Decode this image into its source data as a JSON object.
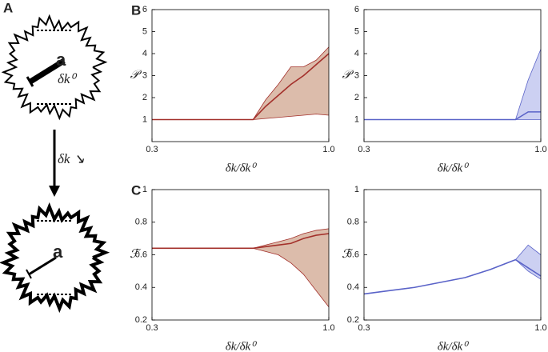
{
  "diagram": {
    "label": "A",
    "top_vector": "a",
    "top_length": "δk⁰",
    "step": "δk ↘",
    "bottom_vector": "a"
  },
  "chart_data": [
    {
      "type": "line",
      "panel_label": "B",
      "xlabel": "δk/δk⁰",
      "ylabel": "𝒫",
      "x": [
        0.3,
        0.4,
        0.5,
        0.6,
        0.7,
        0.75,
        0.8,
        0.85,
        0.9,
        0.95,
        1.0
      ],
      "xlim": [
        0.3,
        1.0
      ],
      "xticks": [
        0.3,
        {
          "value": 1.0,
          "label": "1.0"
        }
      ],
      "ylim": [
        0,
        6
      ],
      "yticks": [
        1,
        2,
        3,
        4,
        5,
        6
      ],
      "series": [
        {
          "color": "#a3302b",
          "band_color": "#dcbcab",
          "values": [
            1,
            1,
            1,
            1,
            1,
            1.6,
            2.1,
            2.6,
            3.0,
            3.5,
            4.0
          ],
          "lower": [
            1,
            1,
            1,
            1,
            1,
            1.05,
            1.1,
            1.15,
            1.2,
            1.25,
            1.2
          ],
          "upper": [
            1,
            1,
            1,
            1,
            1,
            1.9,
            2.6,
            3.4,
            3.4,
            3.7,
            4.3
          ]
        }
      ]
    },
    {
      "type": "line",
      "xlabel": "δk/δk⁰",
      "ylabel": "𝒫",
      "x": [
        0.3,
        0.4,
        0.5,
        0.6,
        0.7,
        0.8,
        0.9,
        0.95,
        1.0
      ],
      "xlim": [
        0.3,
        1.0
      ],
      "xticks": [
        0.3,
        {
          "value": 1.0,
          "label": "1.0"
        }
      ],
      "ylim": [
        0,
        6
      ],
      "yticks": [
        1,
        2,
        3,
        4,
        5,
        6
      ],
      "series": [
        {
          "color": "#5a63c8",
          "band_color": "#ccd0f2",
          "values": [
            1,
            1,
            1,
            1,
            1,
            1,
            1,
            1.35,
            1.35
          ],
          "lower": [
            1,
            1,
            1,
            1,
            1,
            1,
            1,
            1.0,
            1.0
          ],
          "upper": [
            1,
            1,
            1,
            1,
            1,
            1,
            1,
            2.8,
            4.2
          ]
        }
      ]
    },
    {
      "type": "line",
      "panel_label": "C",
      "xlabel": "δk/δk⁰",
      "ylabel": "ℱ",
      "x": [
        0.3,
        0.4,
        0.5,
        0.6,
        0.7,
        0.75,
        0.8,
        0.85,
        0.9,
        0.95,
        1.0
      ],
      "xlim": [
        0.3,
        1.0
      ],
      "xticks": [
        0.3,
        {
          "value": 1.0,
          "label": "1.0"
        }
      ],
      "ylim": [
        0.2,
        1.0
      ],
      "yticks": [
        0.2,
        0.4,
        0.6,
        0.8,
        1
      ],
      "series": [
        {
          "color": "#a3302b",
          "band_color": "#dcbcab",
          "values": [
            0.64,
            0.64,
            0.64,
            0.64,
            0.64,
            0.65,
            0.66,
            0.67,
            0.7,
            0.72,
            0.73
          ],
          "lower": [
            0.64,
            0.64,
            0.64,
            0.64,
            0.64,
            0.62,
            0.6,
            0.55,
            0.48,
            0.38,
            0.28
          ],
          "upper": [
            0.64,
            0.64,
            0.64,
            0.64,
            0.64,
            0.66,
            0.68,
            0.7,
            0.73,
            0.75,
            0.76
          ]
        }
      ]
    },
    {
      "type": "line",
      "xlabel": "δk/δk⁰",
      "ylabel": "ℱ",
      "x": [
        0.3,
        0.4,
        0.5,
        0.6,
        0.7,
        0.8,
        0.9,
        0.95,
        1.0
      ],
      "xlim": [
        0.3,
        1.0
      ],
      "xticks": [
        0.3,
        {
          "value": 1.0,
          "label": "1.0"
        }
      ],
      "ylim": [
        0.2,
        1.0
      ],
      "yticks": [
        0.2,
        0.4,
        0.6,
        0.8,
        1
      ],
      "series": [
        {
          "color": "#5a63c8",
          "band_color": "#ccd0f2",
          "values": [
            0.36,
            0.38,
            0.4,
            0.43,
            0.46,
            0.51,
            0.57,
            0.52,
            0.47
          ],
          "lower": [
            0.36,
            0.38,
            0.4,
            0.43,
            0.46,
            0.51,
            0.57,
            0.5,
            0.45
          ],
          "upper": [
            0.36,
            0.38,
            0.4,
            0.43,
            0.46,
            0.51,
            0.57,
            0.66,
            0.6
          ]
        }
      ]
    }
  ]
}
